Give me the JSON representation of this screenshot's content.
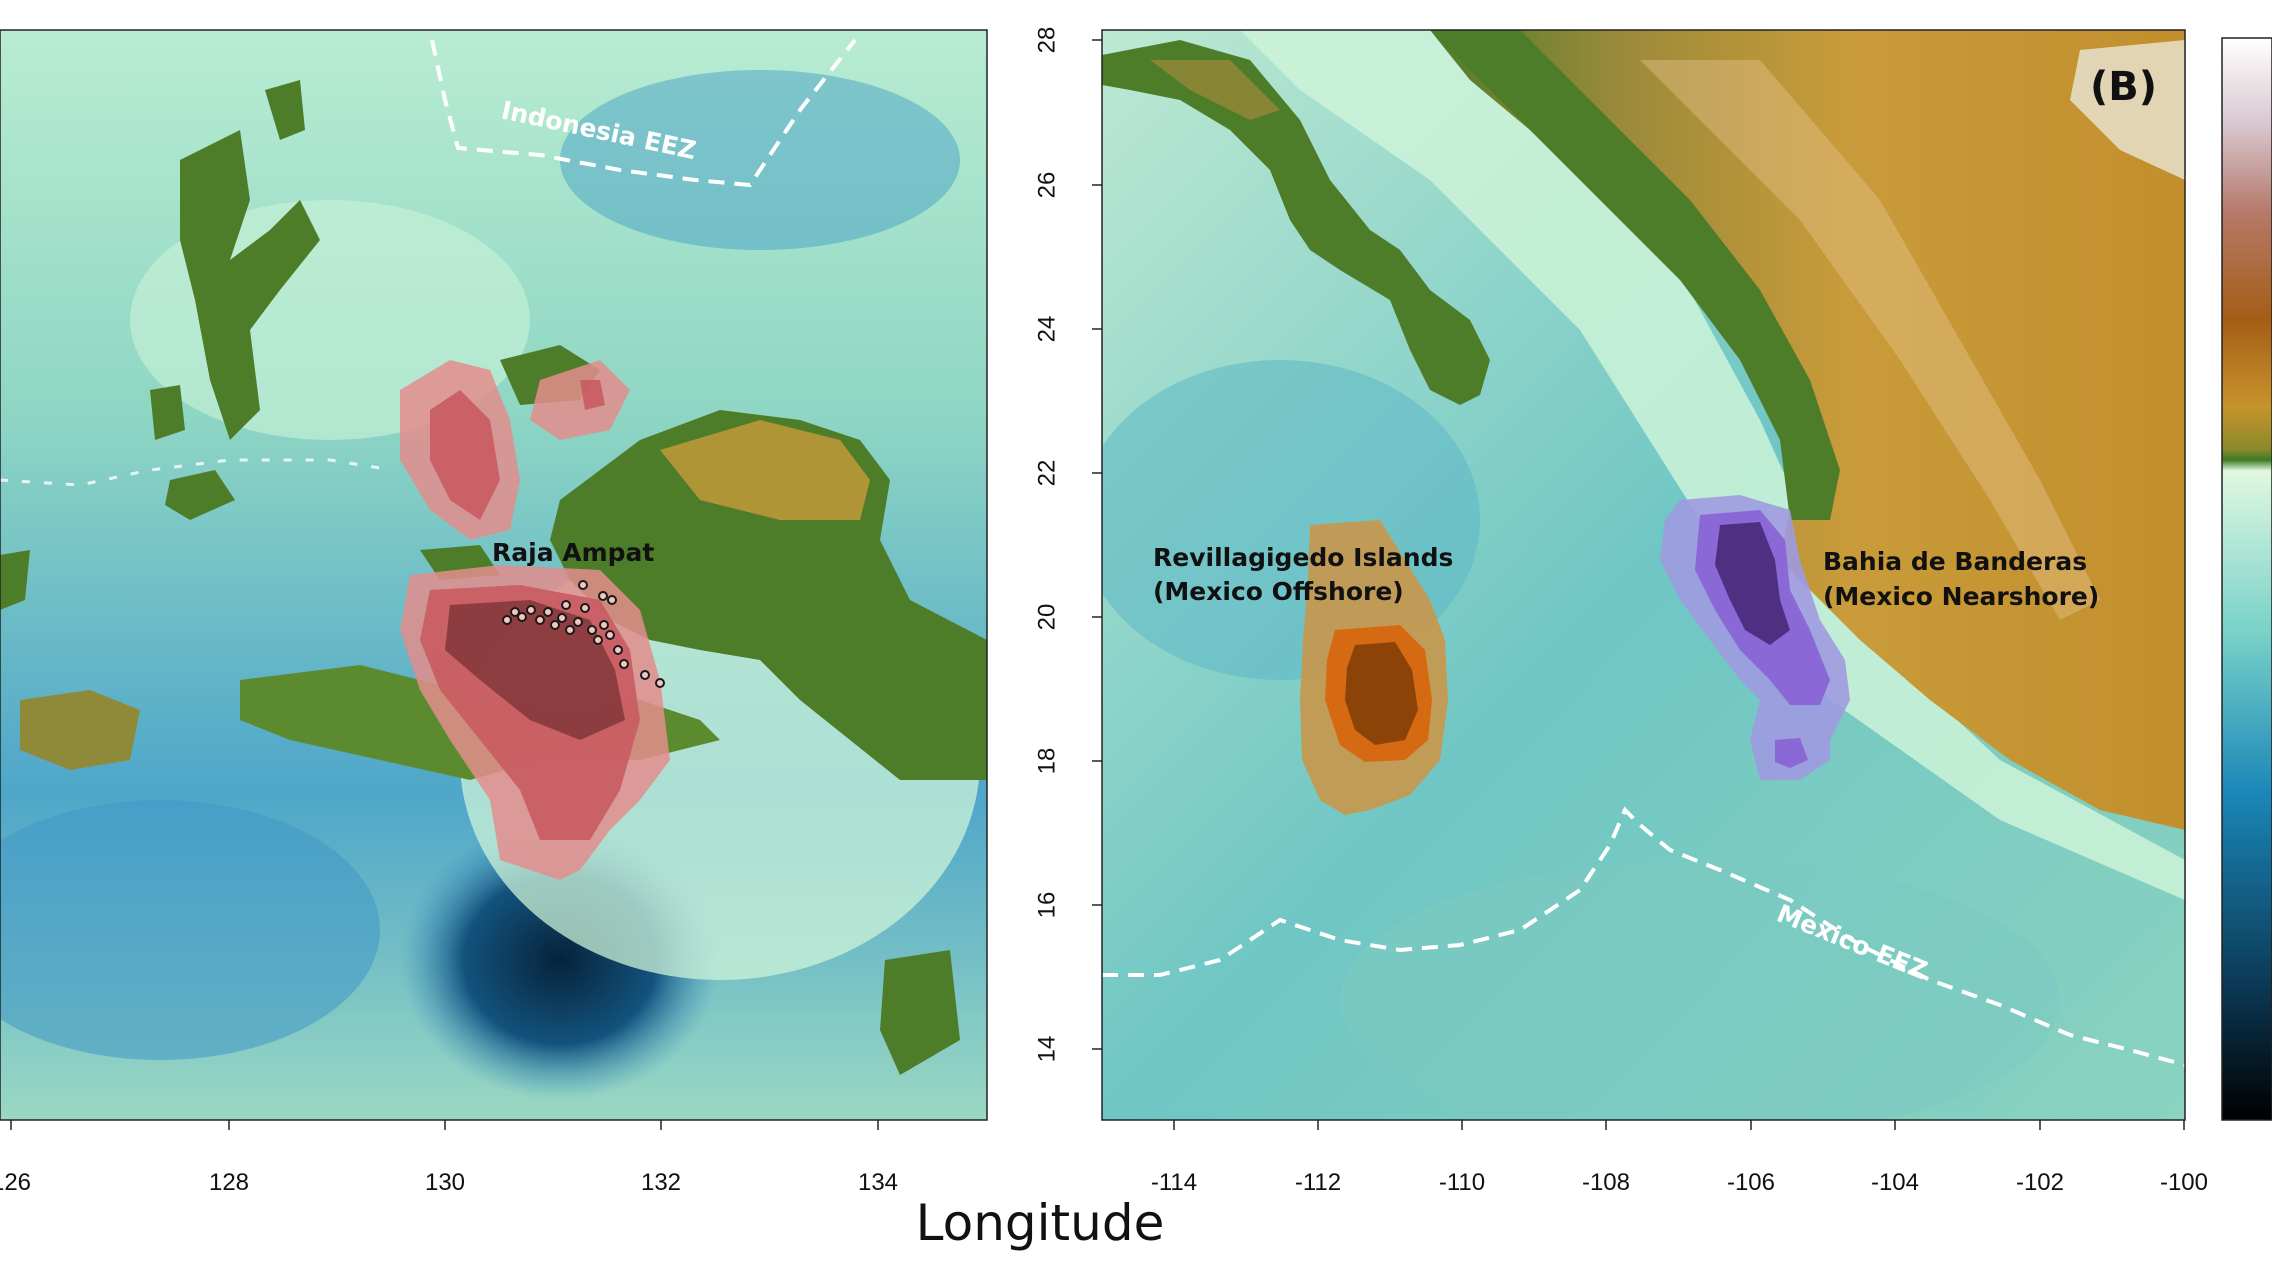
{
  "figure": {
    "xlabel": "Longitude"
  },
  "panel_a": {
    "x_ticks": [
      "126",
      "128",
      "130",
      "132",
      "134"
    ],
    "place_label": "Raja Ampat",
    "eez_label": "Indonesia EEZ"
  },
  "panel_b": {
    "panel_label": "(B)",
    "x_ticks": [
      "-114",
      "-112",
      "-110",
      "-108",
      "-106",
      "-104",
      "-102",
      "-100"
    ],
    "y_ticks": [
      "28",
      "26",
      "24",
      "22",
      "20",
      "18",
      "16",
      "14"
    ],
    "offshore_label_line1": "Revillagigedo Islands",
    "offshore_label_line2": "(Mexico Offshore)",
    "nearshore_label_line1": "Bahia de Banderas",
    "nearshore_label_line2": "(Mexico Nearshore)",
    "eez_label": "Mexico EEZ"
  },
  "colors": {
    "ocean": "#8fd6c4",
    "deep": "#3a8fc0",
    "shallow": "#ccf3d8",
    "land_low": "#4e7d2a",
    "land_high": "#c99b3a",
    "raja_ampat_kde": "#c0504d",
    "revillagigedo_kde": "#b5540f",
    "banderas_kde": "#7a55c8"
  }
}
